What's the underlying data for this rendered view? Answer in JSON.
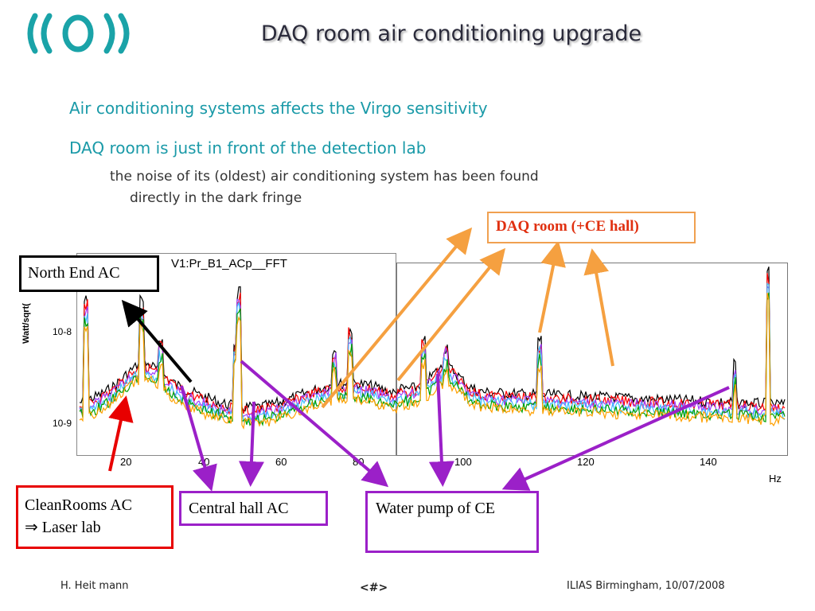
{
  "slide": {
    "title": "DAQ room air conditioning upgrade",
    "bullets": [
      "Air conditioning systems affects the Virgo sensitivity",
      "DAQ room is just in front of the detection lab"
    ],
    "sub_bullet_line1": "the noise of its (oldest) air conditioning system has been found",
    "sub_bullet_line2": "directly in the dark fringe"
  },
  "plot": {
    "title": "V1:Pr_B1_ACp__FFT",
    "ylabel": "Watt/sqrt(",
    "yticks": [
      "10-8",
      "10-9"
    ],
    "xticks_left": [
      "20",
      "40",
      "60",
      "80"
    ],
    "xticks_right": [
      "100",
      "120",
      "140"
    ],
    "xunit": "Hz",
    "series_colors": [
      "#000000",
      "#ff0000",
      "#a040ff",
      "#40c0ff",
      "#00a000",
      "#ffa000"
    ]
  },
  "annotations": {
    "north_end": "North End AC",
    "daq_room": "DAQ room (+CE hall)",
    "cleanrooms_line1": "CleanRooms AC",
    "cleanrooms_line2": "⇒ Laser lab",
    "central_hall": "Central hall AC",
    "water_pump": "Water pump of CE"
  },
  "colors": {
    "title": "#2b2b3b",
    "bullet": "#1a9aa8",
    "arrow_orange": "#f5a040",
    "arrow_purple": "#9b20c8",
    "arrow_red": "#e80000",
    "arrow_black": "#000000"
  },
  "footer": {
    "left": "H. Heit   mann",
    "center": "<#>",
    "right": "ILIAS Birmingham, 10/07/2008"
  }
}
